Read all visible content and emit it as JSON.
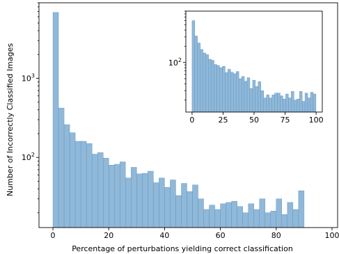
{
  "chart_data": [
    {
      "id": "main",
      "type": "bar",
      "xlabel": "Percentage of perturbations yielding correct classification",
      "ylabel": "Number of  Incorrectly Classified Images",
      "yscale": "log",
      "xlim": [
        -5,
        102
      ],
      "ylim": [
        13,
        9000
      ],
      "xticks": [
        0,
        20,
        40,
        60,
        80,
        100
      ],
      "yticks": [
        {
          "value": 100,
          "label": "10",
          "exp": "2"
        },
        {
          "value": 1000,
          "label": "10",
          "exp": "3"
        }
      ],
      "bin_width": 2,
      "bin_start": 0,
      "color": "#8fb8d9",
      "edge_color": "#5d8fba",
      "values": [
        6800,
        420,
        260,
        205,
        160,
        160,
        150,
        110,
        115,
        98,
        80,
        82,
        88,
        55,
        75,
        62,
        63,
        67,
        48,
        55,
        42,
        52,
        33,
        47,
        37,
        45,
        30,
        22,
        25,
        22,
        26,
        27,
        28,
        24,
        20,
        26,
        22,
        30,
        20,
        21,
        30,
        19,
        27,
        22,
        38
      ]
    },
    {
      "id": "inset",
      "type": "bar",
      "yscale": "log",
      "xlim": [
        -5,
        105
      ],
      "ylim": [
        12,
        900
      ],
      "xticks": [
        0,
        25,
        50,
        75,
        100
      ],
      "yticks": [
        {
          "value": 100,
          "label": "10",
          "exp": "2"
        }
      ],
      "bin_width": 2.22,
      "bin_start": 0,
      "color": "#8fb8d9",
      "edge_color": "#5d8fba",
      "values": [
        600,
        310,
        230,
        175,
        150,
        140,
        115,
        110,
        92,
        88,
        80,
        85,
        65,
        75,
        66,
        62,
        68,
        50,
        55,
        45,
        52,
        33,
        47,
        36,
        44,
        30,
        22,
        25,
        22,
        25,
        27,
        27,
        24,
        21,
        26,
        22,
        29,
        20,
        21,
        29,
        19,
        27,
        22,
        28,
        26
      ]
    }
  ]
}
